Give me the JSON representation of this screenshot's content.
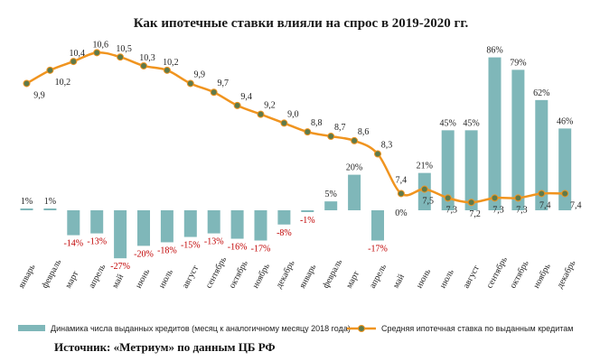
{
  "chart_data": {
    "type": "bar+line",
    "title": "Как ипотечные ставки влияли на спрос в 2019-2020 гг.",
    "categories": [
      "январь",
      "февраль",
      "март",
      "апрель",
      "май",
      "июнь",
      "июль",
      "август",
      "сентябрь",
      "октябрь",
      "ноябрь",
      "декабрь",
      "январь",
      "февраль",
      "март",
      "апрель",
      "май",
      "июнь",
      "июль",
      "август",
      "сентябрь",
      "октябрь",
      "ноябрь",
      "декабрь"
    ],
    "series": [
      {
        "name": "Динамика числа выданных кредитов (месяц к аналогичному месяцу 2018 года)",
        "type": "bar",
        "color": "#7fb7b9",
        "values": [
          1,
          1,
          -14,
          -13,
          -27,
          -20,
          -18,
          -15,
          -13,
          -16,
          -17,
          -8,
          -1,
          5,
          20,
          -17,
          0,
          21,
          45,
          45,
          86,
          79,
          62,
          46
        ],
        "labels": [
          "1%",
          "1%",
          "-14%",
          "-13%",
          "-27%",
          "-20%",
          "-18%",
          "-15%",
          "-13%",
          "-16%",
          "-17%",
          "-8%",
          "-1%",
          "5%",
          "20%",
          "-17%",
          "0%",
          "21%",
          "45%",
          "45%",
          "86%",
          "79%",
          "62%",
          "46%"
        ]
      },
      {
        "name": "Средняя ипотечная ставка по выданным кредитам",
        "type": "line",
        "color": "#f0941f",
        "marker_color": "#5f7a4a",
        "values": [
          9.9,
          10.2,
          10.4,
          10.6,
          10.5,
          10.3,
          10.2,
          9.9,
          9.7,
          9.4,
          9.2,
          9.0,
          8.8,
          8.7,
          8.6,
          8.3,
          7.4,
          7.5,
          7.3,
          7.2,
          7.3,
          7.3,
          7.4,
          7.4
        ],
        "labels": [
          "9,9",
          "10,2",
          "10,4",
          "10,6",
          "10,5",
          "10,3",
          "10,2",
          "9,9",
          "9,7",
          "9,4",
          "9,2",
          "9,0",
          "8,8",
          "8,7",
          "8,6",
          "8,3",
          "7,4",
          "7,5",
          "7,3",
          "7,2",
          "7,3",
          "7,3",
          "7,4",
          "7,4"
        ]
      }
    ],
    "legend_position": "bottom",
    "grid": false
  },
  "source_text": "Источник: «Метриум» по данным ЦБ РФ"
}
